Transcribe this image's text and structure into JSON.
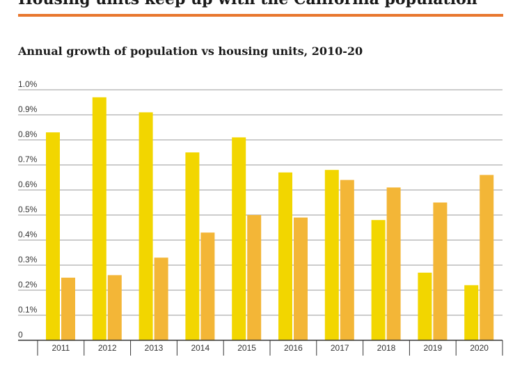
{
  "page": {
    "heading": "Housing units keep up with the California population",
    "accent_color": "#e8772e"
  },
  "chart_data": {
    "type": "bar",
    "title": "Annual growth of population vs housing units, 2010-20",
    "xlabel": "",
    "ylabel": "",
    "categories": [
      "2011",
      "2012",
      "2013",
      "2014",
      "2015",
      "2016",
      "2017",
      "2018",
      "2019",
      "2020"
    ],
    "series": [
      {
        "color": "#f2d600",
        "values": [
          0.83,
          0.97,
          0.91,
          0.75,
          0.81,
          0.67,
          0.68,
          0.48,
          0.27,
          0.22
        ]
      },
      {
        "color": "#f3b637",
        "values": [
          0.25,
          0.26,
          0.33,
          0.43,
          0.5,
          0.49,
          0.64,
          0.61,
          0.55,
          0.66
        ]
      }
    ],
    "ylim": [
      0,
      1.0
    ],
    "yticks": [
      {
        "value": 0,
        "label": "0"
      },
      {
        "value": 0.1,
        "label": "0.1%"
      },
      {
        "value": 0.2,
        "label": "0.2%"
      },
      {
        "value": 0.3,
        "label": "0.3%"
      },
      {
        "value": 0.4,
        "label": "0.4%"
      },
      {
        "value": 0.5,
        "label": "0.5%"
      },
      {
        "value": 0.6,
        "label": "0.6%"
      },
      {
        "value": 0.7,
        "label": "0.7%"
      },
      {
        "value": 0.8,
        "label": "0.8%"
      },
      {
        "value": 0.9,
        "label": "0.9%"
      },
      {
        "value": 1.0,
        "label": "1.0%"
      }
    ],
    "grid": true,
    "legend": "none",
    "grid_color": "#999999"
  }
}
